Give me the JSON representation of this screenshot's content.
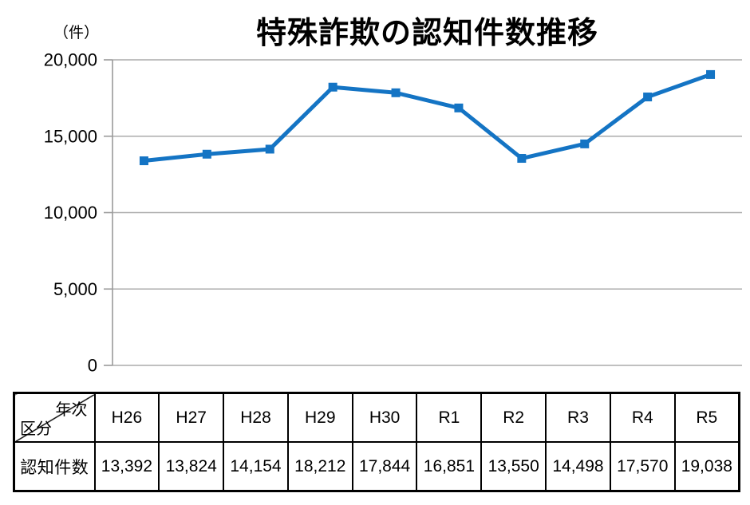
{
  "page": {
    "background_color": "#ffffff"
  },
  "chart": {
    "title": "特殊詐欺の認知件数推移",
    "unit_label": "（件）",
    "line_color": "#1474C4",
    "grid_color": "#ABABAB",
    "axis_color": "#9A9A9A",
    "text_color": "#000000",
    "y_tick_labels": [
      "0",
      "5,000",
      "10,000",
      "15,000",
      "20,000"
    ]
  },
  "chart_data": {
    "type": "line",
    "title": "特殊詐欺の認知件数推移",
    "ylabel": "（件）",
    "categories": [
      "H26",
      "H27",
      "H28",
      "H29",
      "H30",
      "R1",
      "R2",
      "R3",
      "R4",
      "R5"
    ],
    "series": [
      {
        "name": "認知件数",
        "values": [
          13392,
          13824,
          14154,
          18212,
          17844,
          16851,
          13550,
          14498,
          17570,
          19038
        ]
      }
    ],
    "ylim": [
      0,
      20000
    ],
    "y_tick_step": 5000,
    "grid": true,
    "legend": "none",
    "marker": "square",
    "line_color": "#1474C4"
  },
  "table": {
    "corner_top_label": "年次",
    "corner_bottom_label": "区分",
    "row_label": "認知件数",
    "columns": [
      "H26",
      "H27",
      "H28",
      "H29",
      "H30",
      "R1",
      "R2",
      "R3",
      "R4",
      "R5"
    ],
    "values": [
      "13,392",
      "13,824",
      "14,154",
      "18,212",
      "17,844",
      "16,851",
      "13,550",
      "14,498",
      "17,570",
      "19,038"
    ]
  }
}
